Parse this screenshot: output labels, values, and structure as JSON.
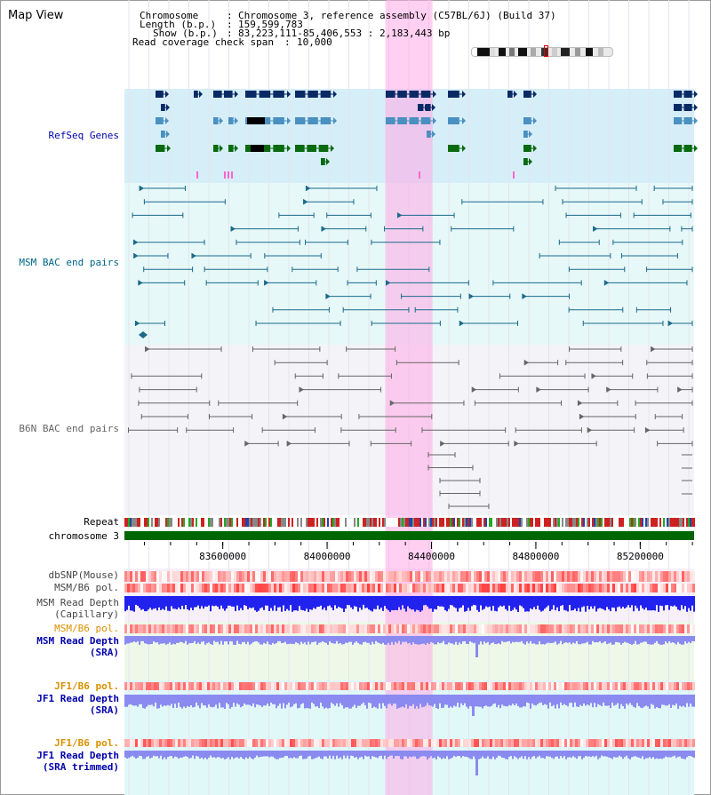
{
  "title": "Map View",
  "info": {
    "chromosome_key": "Chromosome",
    "chromosome_val": "Chromosome 3, reference assembly (C57BL/6J) (Build 37)",
    "length_key": "Length (b.p.)",
    "length_val": "159,599,783",
    "show_key": "Show (b.p.)",
    "show_val": "83,223,111-85,406,553 : 2,183,443 bp",
    "coverage_key": "Read coverage check span",
    "coverage_val": "10,000"
  },
  "labels": {
    "refseq": "RefSeq Genes",
    "msm_bac": "MSM BAC end pairs",
    "b6n_bac": "B6N BAC end pairs",
    "repeat": "Repeat",
    "chromosome": "chromosome 3",
    "dbsnp": "dbSNP(Mouse)",
    "msm_b6_pol_1": "MSM/B6 pol.",
    "msm_depth_cap_1": "MSM Read Depth",
    "msm_depth_cap_2": "(Capillary)",
    "msm_b6_pol_2": "MSM/B6 pol.",
    "msm_depth_sra_1": "MSM Read Depth",
    "msm_depth_sra_2": "(SRA)",
    "jf1_b6_pol_1": "JF1/B6 pol.",
    "jf1_depth_sra_1": "JF1 Read Depth",
    "jf1_depth_sra_2": "(SRA)",
    "jf1_b6_pol_2": "JF1/B6 pol.",
    "jf1_depth_trim_1": "JF1 Read Depth",
    "jf1_depth_trim_2": "(SRA trimmed)"
  },
  "axis": {
    "ticks": [
      "83600000",
      "84000000",
      "84400000",
      "84800000",
      "85200000"
    ],
    "unit": "bp"
  },
  "view": {
    "start_bp": 83223111,
    "end_bp": 85406553,
    "highlight_start_bp": 84223000,
    "highlight_end_bp": 84404000
  },
  "colors": {
    "refseq_bg": "#d6eef8",
    "refseq_blue_dark": "#0a2a66",
    "refseq_blue_mid": "#4a90c0",
    "refseq_green": "#0a6a10",
    "msm_bg": "#e6f8f8",
    "msm_feature": "#1a6a8a",
    "b6n_bg": "#f3f3f8",
    "b6n_feature": "#666666",
    "chromosome_bar": "#006600",
    "highlight": "#ffaae6",
    "depth_blue": "#2222ee",
    "depth_light": "#8a8af0",
    "pol_red": "#ee4444",
    "label_blue": "#0000aa",
    "label_orange": "#d89000",
    "label_msm": "#006688",
    "label_gray": "#444444"
  }
}
